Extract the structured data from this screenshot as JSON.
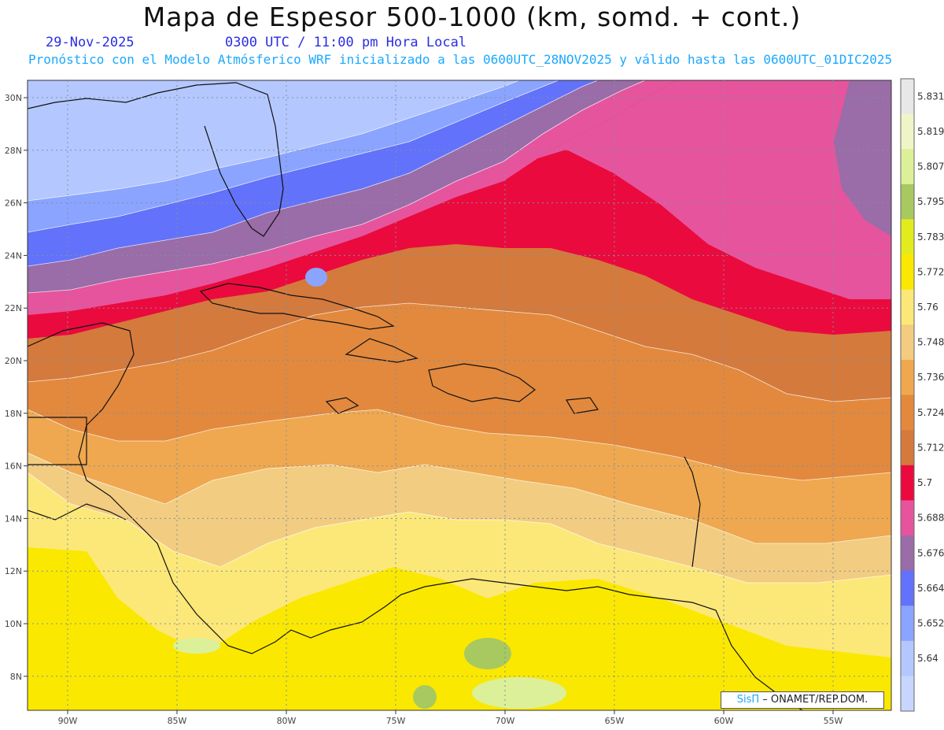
{
  "header": {
    "title": "Mapa de Espesor 500-1000 (km, somd. + cont.)",
    "date": "29-Nov-2025",
    "time": "0300 UTC / 11:00 pm Hora Local",
    "forecast": "Pronóstico con el Modelo Atmósferico WRF inicializado a las 0600UTC_28NOV2025 y válido hasta las  0600UTC_01DIC2025"
  },
  "axes": {
    "lat_labels": [
      "30N",
      "28N",
      "26N",
      "24N",
      "22N",
      "20N",
      "18N",
      "16N",
      "14N",
      "12N",
      "10N",
      "8N"
    ],
    "lon_labels": [
      "90W",
      "85W",
      "80W",
      "75W",
      "70W",
      "65W",
      "60W",
      "55W"
    ]
  },
  "colorbar": {
    "labels": [
      "5.831",
      "5.819",
      "5.807",
      "5.795",
      "5.783",
      "5.772",
      "5.76",
      "5.748",
      "5.736",
      "5.724",
      "5.712",
      "5.7",
      "5.688",
      "5.676",
      "5.664",
      "5.652",
      "5.64"
    ],
    "colors": [
      "#e8e8e8",
      "#f0f5c8",
      "#dcf09a",
      "#a8c860",
      "#e2ec1c",
      "#fae800",
      "#fce878",
      "#f2cc80",
      "#efa850",
      "#e2893e",
      "#d47a3c",
      "#ea0a3e",
      "#e6549e",
      "#9a6ca8",
      "#6272fa",
      "#8aa4ff",
      "#b4c8ff"
    ],
    "bottom_color": "#c8d6ff"
  },
  "credit": {
    "brand": "SisΠ",
    "text": "– ONAMET/REP.DOM."
  }
}
